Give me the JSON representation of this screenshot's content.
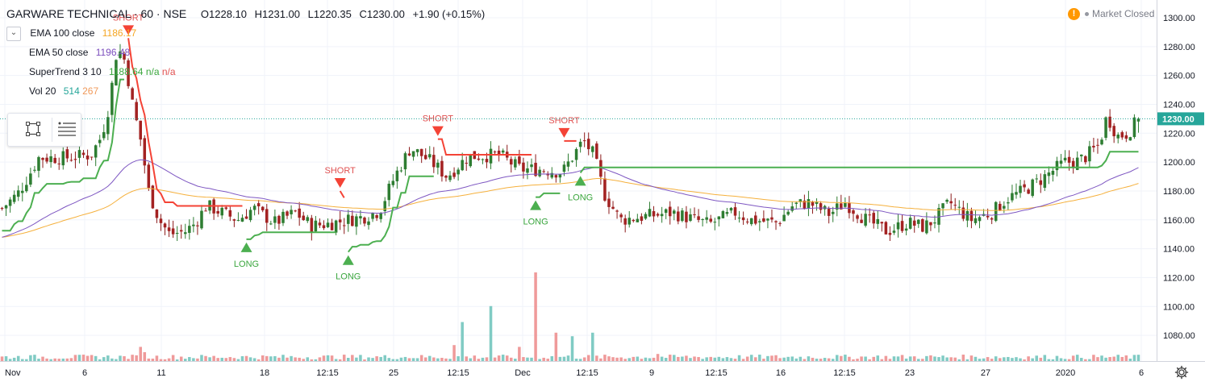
{
  "header": {
    "symbol": "GARWARE TECHNICAL · 60 · NSE",
    "open": "O1228.10",
    "high": "H1231.00",
    "low": "L1220.35",
    "close": "C1230.00",
    "change": "+1.90 (+0.15%)"
  },
  "indicators": [
    {
      "name": "EMA 100 close",
      "values": [
        "1186.17"
      ],
      "colors": [
        "#f5a623"
      ]
    },
    {
      "name": "EMA 50 close",
      "values": [
        "1196.48"
      ],
      "colors": [
        "#7b4dbd"
      ]
    },
    {
      "name": "SuperTrend 3 10",
      "values": [
        "1188.64",
        "n/a",
        "n/a"
      ],
      "colors": [
        "#3aa63d",
        "#3aa63d",
        "#e05050"
      ]
    },
    {
      "name": "Vol 20",
      "values": [
        "514",
        "267"
      ],
      "colors": [
        "#26a69a",
        "#f19a5a"
      ]
    }
  ],
  "status": {
    "market": "Market Closed",
    "warning_icon": "!"
  },
  "colors": {
    "up": "#26a69a",
    "down": "#ef5350",
    "candle_up": "#26a69a",
    "candle_down": "#e57373",
    "st_up": "#4caf50",
    "st_down": "#f44336",
    "ema50": "#7e57c2",
    "ema100": "#f5b03c",
    "vol_up": "#80cbc4",
    "vol_down": "#ef9a9a",
    "price_badge": "#26a69a"
  },
  "chart_data": {
    "type": "candlestick",
    "symbol": "GARWARE TECHNICAL",
    "interval": "60",
    "ylim": [
      1070,
      1305
    ],
    "y_ticks": [
      1080,
      1100,
      1120,
      1140,
      1160,
      1180,
      1200,
      1220,
      1240,
      1260,
      1280,
      1300
    ],
    "y_tick_labels": [
      "1080.00",
      "1100.00",
      "1120.00",
      "1140.00",
      "1160.00",
      "1180.00",
      "1200.00",
      "1220.00",
      "1240.00",
      "1260.00",
      "1280.00",
      "1300.00"
    ],
    "last_price": 1230.0,
    "last_price_label": "1230.00",
    "x_ticks": [
      "Nov",
      "6",
      "11",
      "18",
      "12:15",
      "25",
      "12:15",
      "Dec",
      "12:15",
      "9",
      "12:15",
      "16",
      "12:15",
      "23",
      "27",
      "2020",
      "6"
    ],
    "bar_count": 280,
    "close_anchors": [
      [
        0,
        1168
      ],
      [
        6,
        1178
      ],
      [
        10,
        1190
      ],
      [
        14,
        1203
      ],
      [
        24,
        1203
      ],
      [
        34,
        1205
      ],
      [
        38,
        1218
      ],
      [
        41,
        1240
      ],
      [
        44,
        1280
      ],
      [
        47,
        1270
      ],
      [
        50,
        1238
      ],
      [
        53,
        1215
      ],
      [
        56,
        1180
      ],
      [
        60,
        1160
      ],
      [
        64,
        1150
      ],
      [
        70,
        1152
      ],
      [
        74,
        1158
      ],
      [
        78,
        1170
      ],
      [
        84,
        1165
      ],
      [
        90,
        1160
      ],
      [
        96,
        1168
      ],
      [
        104,
        1158
      ],
      [
        112,
        1165
      ],
      [
        118,
        1156
      ],
      [
        124,
        1157
      ],
      [
        132,
        1160
      ],
      [
        138,
        1162
      ],
      [
        144,
        1166
      ],
      [
        150,
        1190
      ],
      [
        156,
        1210
      ],
      [
        164,
        1200
      ],
      [
        170,
        1190
      ],
      [
        178,
        1204
      ],
      [
        190,
        1205
      ],
      [
        198,
        1195
      ],
      [
        206,
        1195
      ],
      [
        214,
        1193
      ],
      [
        222,
        1215
      ],
      [
        226,
        1205
      ],
      [
        230,
        1178
      ],
      [
        236,
        1160
      ],
      [
        244,
        1162
      ],
      [
        256,
        1165
      ],
      [
        270,
        1157
      ],
      [
        280,
        1165
      ],
      [
        286,
        1160
      ],
      [
        296,
        1158
      ],
      [
        302,
        1170
      ],
      [
        308,
        1172
      ],
      [
        316,
        1164
      ],
      [
        322,
        1172
      ],
      [
        330,
        1160
      ],
      [
        338,
        1152
      ],
      [
        346,
        1158
      ],
      [
        352,
        1155
      ],
      [
        356,
        1160
      ],
      [
        362,
        1172
      ],
      [
        370,
        1160
      ],
      [
        378,
        1165
      ],
      [
        384,
        1175
      ],
      [
        390,
        1180
      ],
      [
        396,
        1187
      ],
      [
        402,
        1195
      ],
      [
        406,
        1200
      ],
      [
        410,
        1200
      ],
      [
        414,
        1204
      ],
      [
        419,
        1212
      ],
      [
        422,
        1232
      ],
      [
        426,
        1218
      ],
      [
        430,
        1220
      ],
      [
        434,
        1230
      ]
    ],
    "ema50_label": "EMA 50 close",
    "ema100_label": "EMA 100 close",
    "supertrend_label": "SuperTrend 3 10",
    "signals": [
      {
        "type": "SHORT",
        "bar": 48,
        "price": 1244
      },
      {
        "type": "LONG",
        "bar": 94,
        "price": 1146
      },
      {
        "type": "SHORT",
        "bar": 129,
        "price": 1213
      },
      {
        "type": "LONG",
        "bar": 132,
        "price": 1180
      },
      {
        "type": "SHORT",
        "bar": 166,
        "price": 1211
      },
      {
        "type": "LONG",
        "bar": 203,
        "price": 1148
      },
      {
        "type": "SHORT",
        "bar": 214,
        "price": 1175
      },
      {
        "type": "LONG",
        "bar": 221,
        "price": 1148
      }
    ],
    "volume_spikes": [
      [
        53,
        8
      ],
      [
        55,
        5
      ],
      [
        172,
        9
      ],
      [
        176,
        22
      ],
      [
        186,
        31
      ],
      [
        198,
        8
      ],
      [
        204,
        50
      ],
      [
        212,
        16
      ],
      [
        218,
        14
      ],
      [
        226,
        16
      ],
      [
        250,
        4
      ]
    ]
  }
}
